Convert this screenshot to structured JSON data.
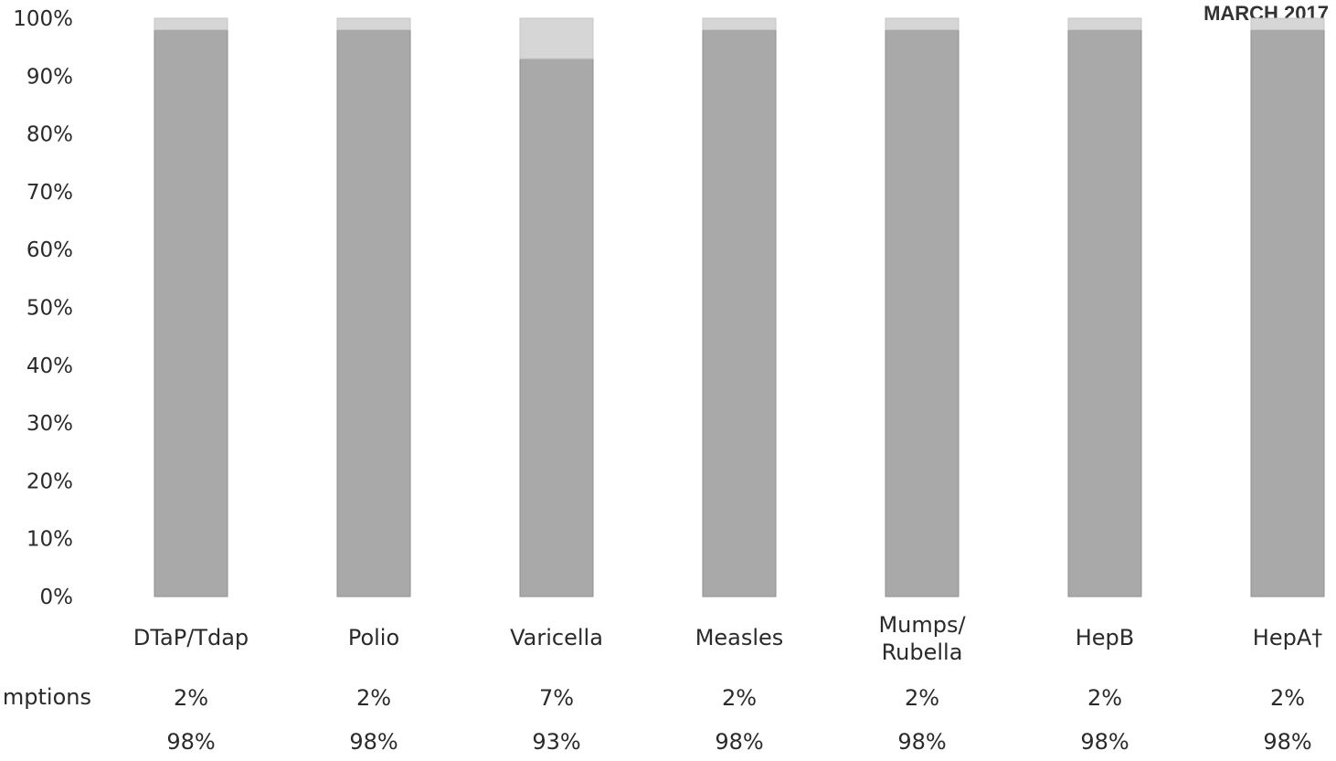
{
  "page_label": "MARCH 2017",
  "chart_data": {
    "type": "bar",
    "stacked": true,
    "categories": [
      "DTaP/Tdap",
      "Polio",
      "Varicella",
      "Measles",
      "Mumps/ Rubella",
      "HepB",
      "HepA†"
    ],
    "series": [
      {
        "values": [
          98,
          98,
          93,
          98,
          98,
          98,
          98
        ],
        "color": "#a9a9a9"
      },
      {
        "name": "mptions",
        "values": [
          2,
          2,
          7,
          2,
          2,
          2,
          2
        ],
        "color": "#d6d6d6"
      }
    ],
    "ylim": [
      0,
      100
    ],
    "yticks": [
      "0%",
      "10%",
      "20%",
      "30%",
      "40%",
      "50%",
      "60%",
      "70%",
      "80%",
      "90%",
      "100%"
    ],
    "grid": false
  }
}
